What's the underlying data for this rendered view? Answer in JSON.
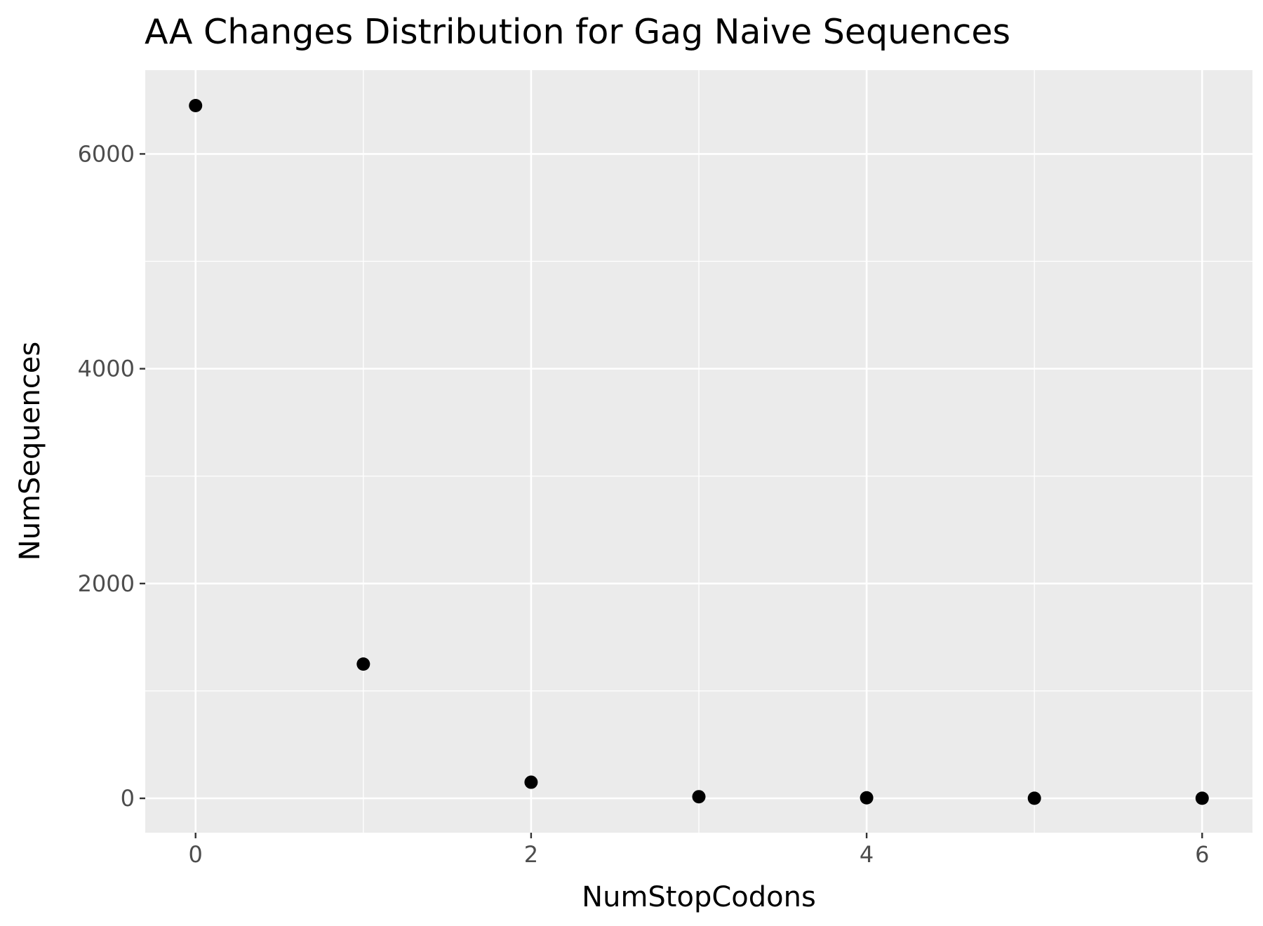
{
  "chart_data": {
    "type": "scatter",
    "title": "AA Changes Distribution for Gag Naive Sequences",
    "xlabel": "NumStopCodons",
    "ylabel": "NumSequences",
    "x": [
      0,
      1,
      2,
      3,
      4,
      5,
      6
    ],
    "y": [
      6450,
      1250,
      150,
      15,
      5,
      1,
      1
    ],
    "xlim": [
      -0.3,
      6.3
    ],
    "ylim": [
      -320,
      6780
    ],
    "x_ticks": [
      0,
      2,
      4,
      6
    ],
    "x_tick_labels": [
      "0",
      "2",
      "4",
      "6"
    ],
    "x_minor_ticks": [
      1,
      3,
      5
    ],
    "y_ticks": [
      0,
      2000,
      4000,
      6000
    ],
    "y_tick_labels": [
      "0",
      "2000",
      "4000",
      "6000"
    ],
    "y_minor_ticks": [
      1000,
      3000,
      5000
    ],
    "grid": true,
    "colors": {
      "panel_background": "#ebebeb",
      "grid": "#ffffff",
      "point": "#000000",
      "tick_label": "#4d4d4d",
      "tick_mark": "#333333"
    }
  }
}
